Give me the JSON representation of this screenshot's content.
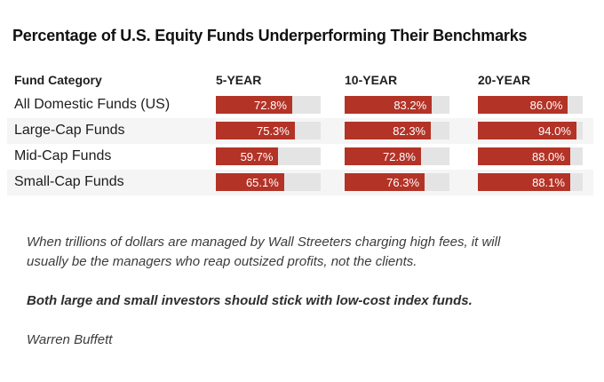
{
  "title": "Percentage of U.S. Equity Funds Underperforming Their Benchmarks",
  "table_header": {
    "fund_category": "Fund Category"
  },
  "chart_data": {
    "type": "bar",
    "title": "Percentage of U.S. Equity Funds Underperforming Their Benchmarks",
    "categories": [
      "All Domestic Funds (US)",
      "Large-Cap Funds",
      "Mid-Cap Funds",
      "Small-Cap Funds"
    ],
    "series": [
      {
        "name": "5-YEAR",
        "values": [
          72.8,
          75.3,
          59.7,
          65.1
        ]
      },
      {
        "name": "10-YEAR",
        "values": [
          83.2,
          82.3,
          72.8,
          76.3
        ]
      },
      {
        "name": "20-YEAR",
        "values": [
          86.0,
          94.0,
          88.0,
          88.1
        ]
      }
    ],
    "value_format": "percent",
    "xlim": [
      0,
      100
    ],
    "bar_color": "#b33327",
    "track_color": "#e4e4e4",
    "striped_rows": [
      1,
      3
    ],
    "legend_position": "column-headers",
    "grid": false
  },
  "quote": {
    "para1_lines": [
      "When trillions of dollars are managed by Wall Streeters charging high fees, it will",
      "usually be the managers who reap outsized profits, not the clients."
    ],
    "para2": "Both large and small investors should stick with low-cost index funds.",
    "attribution": "Warren Buffett"
  }
}
